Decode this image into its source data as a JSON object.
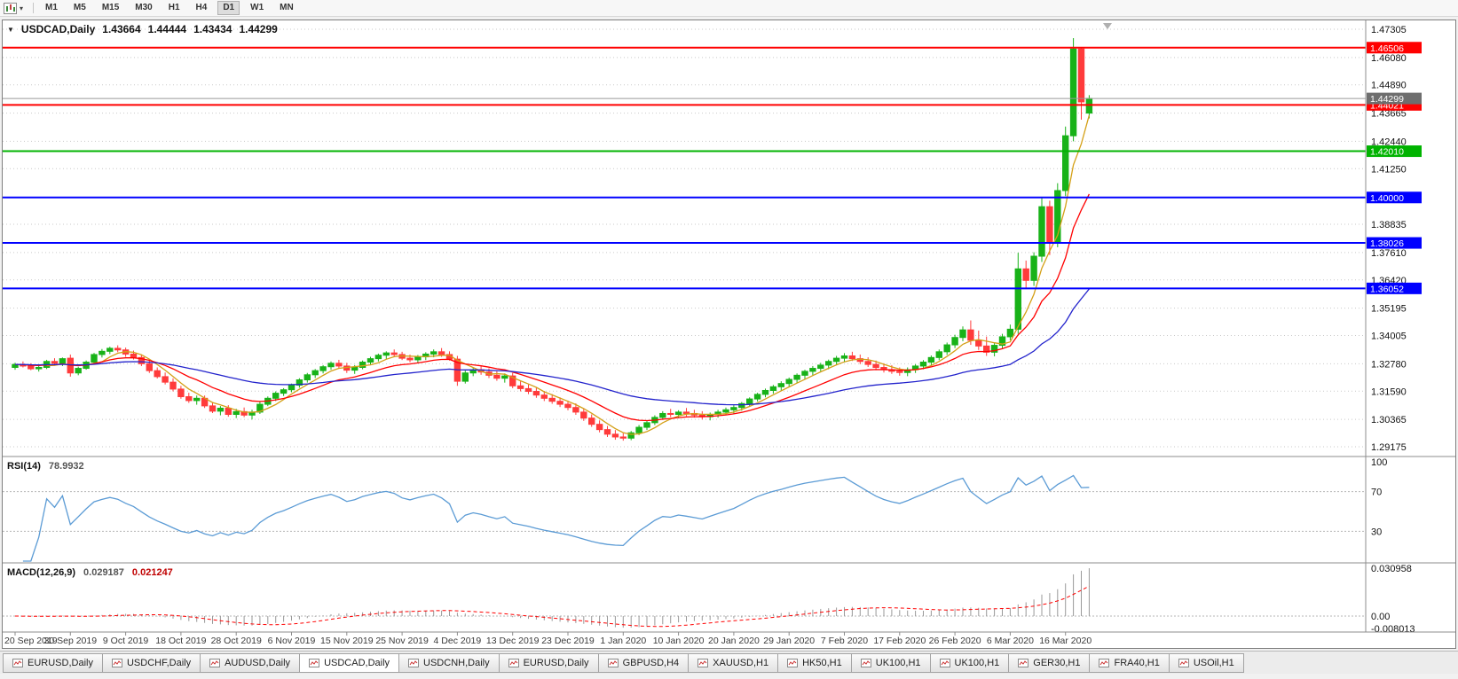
{
  "toolbar": {
    "timeframes": [
      "M1",
      "M5",
      "M15",
      "M30",
      "H1",
      "H4",
      "D1",
      "W1",
      "MN"
    ],
    "active_timeframe": "D1"
  },
  "chart": {
    "collapse_arrow": "▼",
    "symbol_period": "USDCAD,Daily",
    "ohlc": {
      "open": "1.43664",
      "high": "1.44444",
      "low": "1.43434",
      "close": "1.44299"
    }
  },
  "rsi_panel": {
    "label": "RSI(14)",
    "value": "78.9932",
    "axis": [
      "100",
      "70",
      "30"
    ]
  },
  "macd_panel": {
    "label": "MACD(12,26,9)",
    "value_main": "0.029187",
    "value_signal": "0.021247",
    "axis_top": "0.030958",
    "axis_zero": "0.00",
    "axis_bottom": "-0.008013"
  },
  "tabs": {
    "items": [
      {
        "label": "EURUSD,Daily"
      },
      {
        "label": "USDCHF,Daily"
      },
      {
        "label": "AUDUSD,Daily"
      },
      {
        "label": "USDCAD,Daily",
        "active": true
      },
      {
        "label": "USDCNH,Daily"
      },
      {
        "label": "EURUSD,Daily"
      },
      {
        "label": "GBPUSD,H4"
      },
      {
        "label": "XAUUSD,H1"
      },
      {
        "label": "HK50,H1"
      },
      {
        "label": "UK100,H1"
      },
      {
        "label": "UK100,H1"
      },
      {
        "label": "GER30,H1"
      },
      {
        "label": "FRA40,H1"
      },
      {
        "label": "USOil,H1"
      }
    ]
  },
  "chart_data": {
    "type": "candlestick",
    "title": "USDCAD,Daily",
    "price_range": [
      1.29175,
      1.47305
    ],
    "price_axis_ticks": [
      "1.47305",
      "1.46080",
      "1.44890",
      "1.43665",
      "1.42440",
      "1.41250",
      "1.38835",
      "1.37610",
      "1.36420",
      "1.35195",
      "1.34005",
      "1.32780",
      "1.31590",
      "1.30365",
      "1.29175"
    ],
    "x_labels": [
      "20 Sep 2019",
      "30 Sep 2019",
      "9 Oct 2019",
      "18 Oct 2019",
      "28 Oct 2019",
      "6 Nov 2019",
      "15 Nov 2019",
      "25 Nov 2019",
      "4 Dec 2019",
      "13 Dec 2019",
      "23 Dec 2019",
      "1 Jan 2020",
      "10 Jan 2020",
      "20 Jan 2020",
      "29 Jan 2020",
      "7 Feb 2020",
      "17 Feb 2020",
      "26 Feb 2020",
      "6 Mar 2020",
      "16 Mar 2020"
    ],
    "bars_per_label": 7,
    "up_color": "#18B218",
    "down_color": "#FF3B3B",
    "moving_averages": [
      {
        "type": "sma",
        "period": 5,
        "color": "#D4A017"
      },
      {
        "type": "ema",
        "period": 13,
        "color": "#FF0000"
      },
      {
        "type": "ema",
        "period": 40,
        "color": "#2323CC"
      }
    ],
    "horizontal_lines": [
      {
        "price": 1.46506,
        "color": "#FF0000"
      },
      {
        "price": 1.44021,
        "color": "#FF0000"
      },
      {
        "price": 1.4201,
        "color": "#00B300"
      },
      {
        "price": 1.4,
        "color": "#0000FF"
      },
      {
        "price": 1.38026,
        "color": "#0000FF"
      },
      {
        "price": 1.36052,
        "color": "#0000FF"
      }
    ],
    "bid_line": {
      "price": 1.44299,
      "line_color": "#9a9a9a",
      "badge_color": "#6e6e6e"
    },
    "rsi": {
      "period": 14,
      "color": "#5B9BD5",
      "levels": [
        70,
        30
      ]
    },
    "macd": {
      "fast": 12,
      "slow": 26,
      "signal": 9,
      "axis_max": 0.030958,
      "axis_min": -0.008013,
      "histogram_color": "#999999",
      "signal_color": "#FF0000"
    },
    "candles": [
      [
        1.3262,
        1.3282,
        1.3252,
        1.3275
      ],
      [
        1.3275,
        1.3288,
        1.3262,
        1.3268
      ],
      [
        1.3268,
        1.328,
        1.325,
        1.3256
      ],
      [
        1.3256,
        1.327,
        1.3244,
        1.3262
      ],
      [
        1.3262,
        1.3295,
        1.3255,
        1.3288
      ],
      [
        1.3288,
        1.3302,
        1.327,
        1.328
      ],
      [
        1.328,
        1.3305,
        1.3268,
        1.33
      ],
      [
        1.3302,
        1.3318,
        1.3222,
        1.3238
      ],
      [
        1.3238,
        1.3265,
        1.3228,
        1.3258
      ],
      [
        1.3258,
        1.3292,
        1.3252,
        1.3285
      ],
      [
        1.3285,
        1.3325,
        1.328,
        1.3318
      ],
      [
        1.3318,
        1.3342,
        1.3305,
        1.3332
      ],
      [
        1.3332,
        1.3352,
        1.332,
        1.3345
      ],
      [
        1.3345,
        1.3358,
        1.3328,
        1.3338
      ],
      [
        1.3338,
        1.3348,
        1.3308,
        1.332
      ],
      [
        1.332,
        1.3335,
        1.3296,
        1.3305
      ],
      [
        1.3305,
        1.3318,
        1.3268,
        1.3278
      ],
      [
        1.3278,
        1.3292,
        1.3238,
        1.3248
      ],
      [
        1.3248,
        1.3262,
        1.3214,
        1.3222
      ],
      [
        1.3222,
        1.324,
        1.3188,
        1.3198
      ],
      [
        1.3198,
        1.3215,
        1.3158,
        1.3168
      ],
      [
        1.3168,
        1.3182,
        1.3126,
        1.3135
      ],
      [
        1.3135,
        1.3152,
        1.3108,
        1.3118
      ],
      [
        1.3118,
        1.314,
        1.31,
        1.3128
      ],
      [
        1.3128,
        1.314,
        1.3086,
        1.3095
      ],
      [
        1.3095,
        1.3112,
        1.3064,
        1.3072
      ],
      [
        1.3072,
        1.3094,
        1.3054,
        1.3085
      ],
      [
        1.3085,
        1.3098,
        1.3048,
        1.3058
      ],
      [
        1.3058,
        1.3082,
        1.3042,
        1.307
      ],
      [
        1.307,
        1.3088,
        1.3046,
        1.3055
      ],
      [
        1.3055,
        1.3078,
        1.3036,
        1.3068
      ],
      [
        1.3068,
        1.3112,
        1.306,
        1.3102
      ],
      [
        1.3102,
        1.3136,
        1.3094,
        1.3128
      ],
      [
        1.3128,
        1.3158,
        1.3116,
        1.315
      ],
      [
        1.315,
        1.3172,
        1.3138,
        1.3165
      ],
      [
        1.3165,
        1.3192,
        1.3154,
        1.3185
      ],
      [
        1.3185,
        1.3215,
        1.3174,
        1.3208
      ],
      [
        1.3208,
        1.3238,
        1.3196,
        1.323
      ],
      [
        1.323,
        1.3255,
        1.3216,
        1.3248
      ],
      [
        1.3248,
        1.3272,
        1.3236,
        1.3265
      ],
      [
        1.3265,
        1.3288,
        1.3252,
        1.328
      ],
      [
        1.328,
        1.3295,
        1.3256,
        1.3268
      ],
      [
        1.3268,
        1.3282,
        1.3238,
        1.325
      ],
      [
        1.325,
        1.3272,
        1.3234,
        1.3262
      ],
      [
        1.3262,
        1.3292,
        1.3254,
        1.3285
      ],
      [
        1.3285,
        1.3308,
        1.3274,
        1.33
      ],
      [
        1.33,
        1.3322,
        1.3288,
        1.3315
      ],
      [
        1.3315,
        1.3332,
        1.3298,
        1.3325
      ],
      [
        1.3325,
        1.334,
        1.3306,
        1.3318
      ],
      [
        1.3318,
        1.333,
        1.3294,
        1.3302
      ],
      [
        1.3302,
        1.3318,
        1.3284,
        1.3295
      ],
      [
        1.3295,
        1.3316,
        1.3282,
        1.3308
      ],
      [
        1.3308,
        1.3328,
        1.3294,
        1.332
      ],
      [
        1.332,
        1.334,
        1.3306,
        1.333
      ],
      [
        1.333,
        1.3346,
        1.3308,
        1.3318
      ],
      [
        1.3318,
        1.3332,
        1.3292,
        1.3298
      ],
      [
        1.3298,
        1.3312,
        1.3182,
        1.3202
      ],
      [
        1.3202,
        1.3248,
        1.3192,
        1.3238
      ],
      [
        1.3238,
        1.3262,
        1.3224,
        1.3252
      ],
      [
        1.3252,
        1.327,
        1.323,
        1.3242
      ],
      [
        1.3242,
        1.3258,
        1.3216,
        1.3228
      ],
      [
        1.3228,
        1.3246,
        1.3204,
        1.3215
      ],
      [
        1.3215,
        1.3236,
        1.3196,
        1.3225
      ],
      [
        1.3225,
        1.3238,
        1.3172,
        1.3182
      ],
      [
        1.3182,
        1.3202,
        1.3158,
        1.317
      ],
      [
        1.317,
        1.3188,
        1.3146,
        1.3158
      ],
      [
        1.3158,
        1.3176,
        1.313,
        1.3142
      ],
      [
        1.3142,
        1.316,
        1.3116,
        1.3128
      ],
      [
        1.3128,
        1.3146,
        1.3104,
        1.3115
      ],
      [
        1.3115,
        1.3132,
        1.309,
        1.3102
      ],
      [
        1.3102,
        1.3118,
        1.3076,
        1.3088
      ],
      [
        1.3088,
        1.3106,
        1.3056,
        1.3068
      ],
      [
        1.3068,
        1.3082,
        1.303,
        1.3042
      ],
      [
        1.3042,
        1.3058,
        1.3004,
        1.3015
      ],
      [
        1.3015,
        1.3032,
        1.298,
        1.2992
      ],
      [
        1.2992,
        1.3008,
        1.296,
        1.2972
      ],
      [
        1.2972,
        1.299,
        1.2948,
        1.296
      ],
      [
        1.296,
        1.2976,
        1.2944,
        1.2955
      ],
      [
        1.2955,
        1.2986,
        1.2946,
        1.2978
      ],
      [
        1.2978,
        1.3012,
        1.2968,
        1.3002
      ],
      [
        1.3002,
        1.3032,
        1.299,
        1.3022
      ],
      [
        1.3022,
        1.3054,
        1.3012,
        1.3045
      ],
      [
        1.3045,
        1.3072,
        1.3034,
        1.3062
      ],
      [
        1.3062,
        1.3082,
        1.3046,
        1.3058
      ],
      [
        1.3058,
        1.3076,
        1.3042,
        1.3068
      ],
      [
        1.3068,
        1.3086,
        1.305,
        1.3062
      ],
      [
        1.3062,
        1.3078,
        1.3044,
        1.3055
      ],
      [
        1.3055,
        1.3072,
        1.3036,
        1.3048
      ],
      [
        1.3048,
        1.3066,
        1.3032,
        1.3058
      ],
      [
        1.3058,
        1.3078,
        1.3044,
        1.3068
      ],
      [
        1.3068,
        1.3088,
        1.3054,
        1.3078
      ],
      [
        1.3078,
        1.3098,
        1.3062,
        1.3088
      ],
      [
        1.3088,
        1.3112,
        1.3074,
        1.3105
      ],
      [
        1.3105,
        1.3132,
        1.3094,
        1.3125
      ],
      [
        1.3125,
        1.3152,
        1.3114,
        1.3145
      ],
      [
        1.3145,
        1.317,
        1.3132,
        1.3162
      ],
      [
        1.3162,
        1.3186,
        1.3148,
        1.3178
      ],
      [
        1.3178,
        1.3202,
        1.3162,
        1.3192
      ],
      [
        1.3192,
        1.3218,
        1.3178,
        1.321
      ],
      [
        1.321,
        1.3236,
        1.3194,
        1.3228
      ],
      [
        1.3228,
        1.3252,
        1.3212,
        1.3245
      ],
      [
        1.3245,
        1.3268,
        1.3228,
        1.3258
      ],
      [
        1.3258,
        1.3282,
        1.3242,
        1.3272
      ],
      [
        1.3272,
        1.3296,
        1.3254,
        1.3288
      ],
      [
        1.3288,
        1.3312,
        1.3272,
        1.3302
      ],
      [
        1.3302,
        1.3324,
        1.3284,
        1.3312
      ],
      [
        1.3312,
        1.333,
        1.329,
        1.33
      ],
      [
        1.33,
        1.3318,
        1.3276,
        1.3288
      ],
      [
        1.3288,
        1.3306,
        1.3264,
        1.3275
      ],
      [
        1.3275,
        1.3292,
        1.325,
        1.3262
      ],
      [
        1.3262,
        1.328,
        1.324,
        1.3252
      ],
      [
        1.3252,
        1.3272,
        1.3234,
        1.3245
      ],
      [
        1.3245,
        1.3262,
        1.3226,
        1.324
      ],
      [
        1.324,
        1.3262,
        1.3224,
        1.3252
      ],
      [
        1.3252,
        1.3276,
        1.3238,
        1.3268
      ],
      [
        1.3268,
        1.3294,
        1.3254,
        1.3285
      ],
      [
        1.3285,
        1.3314,
        1.327,
        1.3305
      ],
      [
        1.3305,
        1.334,
        1.3294,
        1.333
      ],
      [
        1.333,
        1.337,
        1.3316,
        1.336
      ],
      [
        1.336,
        1.3404,
        1.3346,
        1.3392
      ],
      [
        1.3392,
        1.344,
        1.3376,
        1.3425
      ],
      [
        1.3425,
        1.3466,
        1.336,
        1.338
      ],
      [
        1.338,
        1.3422,
        1.3338,
        1.3355
      ],
      [
        1.3355,
        1.3396,
        1.3312,
        1.3328
      ],
      [
        1.3328,
        1.337,
        1.331,
        1.3358
      ],
      [
        1.3358,
        1.3408,
        1.3344,
        1.3395
      ],
      [
        1.3395,
        1.3448,
        1.338,
        1.3428
      ],
      [
        1.3428,
        1.376,
        1.3408,
        1.369
      ],
      [
        1.369,
        1.3726,
        1.3602,
        1.364
      ],
      [
        1.364,
        1.3762,
        1.3616,
        1.3745
      ],
      [
        1.3745,
        1.3998,
        1.372,
        1.396
      ],
      [
        1.396,
        1.3986,
        1.375,
        1.3805
      ],
      [
        1.3805,
        1.4062,
        1.3784,
        1.403
      ],
      [
        1.403,
        1.4308,
        1.4006,
        1.4268
      ],
      [
        1.4268,
        1.4692,
        1.4244,
        1.4645
      ],
      [
        1.4645,
        1.4652,
        1.4338,
        1.4415
      ],
      [
        1.43664,
        1.44444,
        1.43434,
        1.44299
      ]
    ]
  }
}
